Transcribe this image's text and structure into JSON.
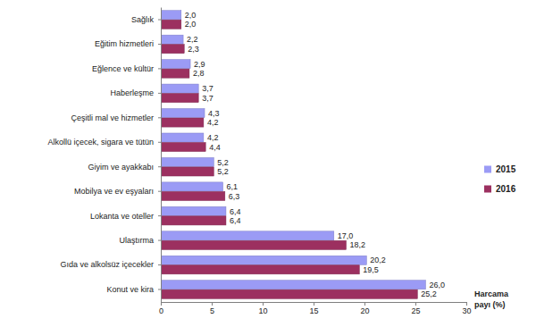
{
  "chart_data": {
    "type": "bar",
    "orientation": "horizontal",
    "categories": [
      "Sağlık",
      "Eğitim hizmetleri",
      "Eğlence ve kültür",
      "Haberleşme",
      "Çeşitli mal ve hizmetler",
      "Alkollü içecek, sigara ve tütün",
      "Giyim ve ayakkabı",
      "Mobilya ve ev eşyaları",
      "Lokanta ve oteller",
      "Ulaştırma",
      "Gıda ve alkolsüz içecekler",
      "Konut ve kira"
    ],
    "series": [
      {
        "name": "2015",
        "color": "#9b9bf5",
        "values": [
          2.0,
          2.2,
          2.9,
          3.7,
          4.3,
          4.2,
          5.2,
          6.1,
          6.4,
          17.0,
          20.2,
          26.0
        ],
        "value_labels": [
          "2,0",
          "2,2",
          "2,9",
          "3,7",
          "4,3",
          "4,2",
          "5,2",
          "6,1",
          "6,4",
          "17,0",
          "20,2",
          "26,0"
        ]
      },
      {
        "name": "2016",
        "color": "#9c3060",
        "values": [
          2.0,
          2.3,
          2.8,
          3.7,
          4.2,
          4.4,
          5.2,
          6.3,
          6.4,
          18.2,
          19.5,
          25.2
        ],
        "value_labels": [
          "2,0",
          "2,3",
          "2,8",
          "3,7",
          "4,2",
          "4,4",
          "5,2",
          "6,3",
          "6,4",
          "18,2",
          "19,5",
          "25,2"
        ]
      }
    ],
    "x_label": "Harcama payı (%)",
    "xlim": [
      0,
      30
    ],
    "xticks": [
      0,
      5,
      10,
      15,
      20,
      25,
      30
    ],
    "grid": false,
    "legend": "right",
    "data_labels": true
  }
}
